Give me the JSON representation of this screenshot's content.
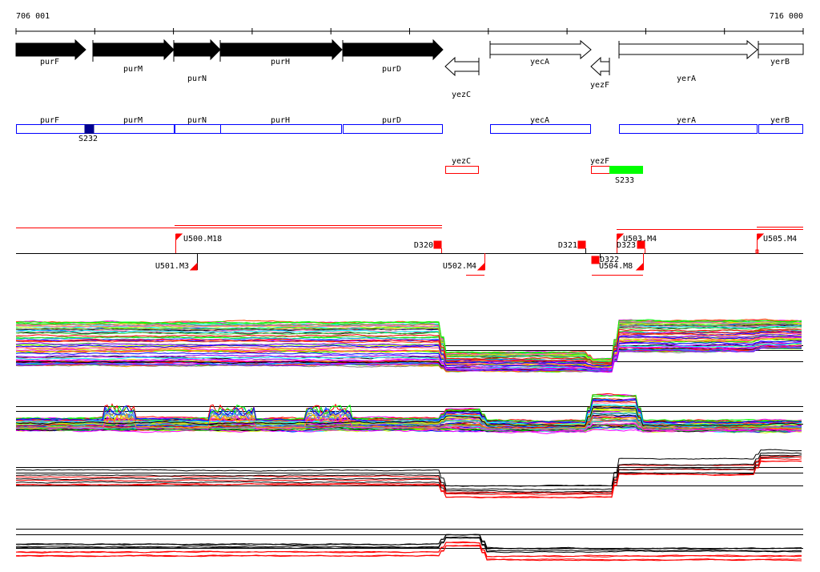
{
  "ruler": {
    "start_label": "706 001",
    "end_label": "716 000"
  },
  "genes": {
    "purF": "purF",
    "purM": "purM",
    "purN": "purN",
    "purH": "purH",
    "purD": "purD",
    "yezC": "yezC",
    "yecA": "yecA",
    "yezF": "yezF",
    "yerA": "yerA",
    "yerB": "yerB"
  },
  "features": {
    "S232": "S232",
    "S233": "S233"
  },
  "markers": {
    "U500": "U500.M18",
    "U501": "U501.M3",
    "D320": "D320",
    "U502": "U502.M4",
    "D321": "D321",
    "U503": "U503.M4",
    "D323": "D323",
    "D322": "D322",
    "U504": "U504.M8",
    "U505": "U505.M4"
  },
  "colors": {
    "gene_box": "#0000ff",
    "reverse_box": "#ff0000",
    "sig_dark": "#000090",
    "sig_green": "#00ff00",
    "marker": "#ff0000"
  },
  "tracks": [
    {
      "name": "track-1",
      "series_count": 60,
      "palette": "rainbow"
    },
    {
      "name": "track-2",
      "series_count": 50,
      "palette": "rainbow"
    },
    {
      "name": "track-3",
      "series_count": 8,
      "palette": "black-red"
    },
    {
      "name": "track-4",
      "series_count": 8,
      "palette": "black-red"
    }
  ]
}
